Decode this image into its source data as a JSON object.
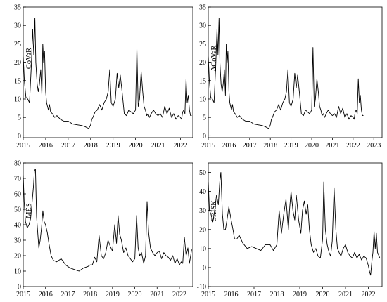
{
  "chart_data": [
    {
      "type": "line",
      "title": "",
      "xlabel": "",
      "ylabel": "CoVaR",
      "xlim": [
        2015.0,
        2022.55
      ],
      "ylim": [
        -0.5,
        35
      ],
      "xticks": [
        2015,
        2016,
        2017,
        2018,
        2019,
        2020,
        2021,
        2022
      ],
      "yticks": [
        0,
        5,
        10,
        15,
        20,
        25,
        30,
        35
      ],
      "grid": false,
      "line_color": "#000000",
      "x": [
        2015.0,
        2015.05,
        2015.12,
        2015.2,
        2015.28,
        2015.32,
        2015.36,
        2015.42,
        2015.47,
        2015.52,
        2015.56,
        2015.62,
        2015.67,
        2015.72,
        2015.78,
        2015.83,
        2015.87,
        2015.91,
        2015.95,
        2016.0,
        2016.04,
        2016.08,
        2016.12,
        2016.17,
        2016.22,
        2016.3,
        2016.4,
        2016.5,
        2016.65,
        2016.8,
        2017.0,
        2017.2,
        2017.4,
        2017.6,
        2017.75,
        2017.85,
        2017.92,
        2018.0,
        2018.05,
        2018.1,
        2018.2,
        2018.3,
        2018.4,
        2018.5,
        2018.6,
        2018.7,
        2018.78,
        2018.85,
        2018.92,
        2019.0,
        2019.1,
        2019.18,
        2019.25,
        2019.32,
        2019.4,
        2019.5,
        2019.6,
        2019.7,
        2019.8,
        2019.9,
        2020.0,
        2020.06,
        2020.12,
        2020.18,
        2020.25,
        2020.32,
        2020.38,
        2020.44,
        2020.5,
        2020.56,
        2020.62,
        2020.7,
        2020.8,
        2020.9,
        2021.0,
        2021.1,
        2021.2,
        2021.3,
        2021.4,
        2021.5,
        2021.6,
        2021.7,
        2021.8,
        2021.9,
        2022.0,
        2022.05,
        2022.1,
        2022.15,
        2022.2,
        2022.25,
        2022.3,
        2022.35,
        2022.4,
        2022.45,
        2022.5
      ],
      "values": [
        21.5,
        15.0,
        10.5,
        10.0,
        9.0,
        14.0,
        19.0,
        29.0,
        22.0,
        32.0,
        20.0,
        14.0,
        12.0,
        14.0,
        18.0,
        11.0,
        25.0,
        20.0,
        23.0,
        12.0,
        9.0,
        8.0,
        7.0,
        8.5,
        6.5,
        6.0,
        5.0,
        5.5,
        4.5,
        4.0,
        4.0,
        3.2,
        3.0,
        2.8,
        2.5,
        2.2,
        2.0,
        3.0,
        4.5,
        5.0,
        6.5,
        7.0,
        8.5,
        7.0,
        9.0,
        10.0,
        12.0,
        18.0,
        9.0,
        8.0,
        10.0,
        17.0,
        13.0,
        16.5,
        12.0,
        6.0,
        5.5,
        7.0,
        6.5,
        6.0,
        7.0,
        24.0,
        8.0,
        10.0,
        17.5,
        12.0,
        8.0,
        7.0,
        5.5,
        6.0,
        5.0,
        6.0,
        7.0,
        6.0,
        5.5,
        6.0,
        5.0,
        8.0,
        6.0,
        7.5,
        5.0,
        6.0,
        4.5,
        5.5,
        5.0,
        4.5,
        6.5,
        7.0,
        6.0,
        15.5,
        9.0,
        11.0,
        7.0,
        5.5,
        5.5
      ]
    },
    {
      "type": "line",
      "title": "",
      "xlabel": "",
      "ylabel": "ΔCoVaR",
      "xlim": [
        2015.0,
        2023.4
      ],
      "ylim": [
        -0.5,
        35
      ],
      "xticks": [
        2015,
        2016,
        2017,
        2018,
        2019,
        2020,
        2021,
        2022,
        2023
      ],
      "yticks": [
        0,
        5,
        10,
        15,
        20,
        25,
        30,
        35
      ],
      "grid": false,
      "line_color": "#000000",
      "x": [
        2015.0,
        2015.05,
        2015.12,
        2015.2,
        2015.28,
        2015.32,
        2015.36,
        2015.42,
        2015.47,
        2015.52,
        2015.56,
        2015.62,
        2015.67,
        2015.72,
        2015.78,
        2015.83,
        2015.87,
        2015.91,
        2015.95,
        2016.0,
        2016.04,
        2016.08,
        2016.12,
        2016.17,
        2016.22,
        2016.3,
        2016.4,
        2016.5,
        2016.65,
        2016.8,
        2017.0,
        2017.2,
        2017.4,
        2017.6,
        2017.75,
        2017.85,
        2017.92,
        2018.0,
        2018.05,
        2018.1,
        2018.2,
        2018.3,
        2018.4,
        2018.5,
        2018.6,
        2018.7,
        2018.78,
        2018.85,
        2018.92,
        2019.0,
        2019.1,
        2019.18,
        2019.25,
        2019.32,
        2019.4,
        2019.5,
        2019.6,
        2019.7,
        2019.8,
        2019.9,
        2020.0,
        2020.06,
        2020.12,
        2020.18,
        2020.25,
        2020.32,
        2020.38,
        2020.44,
        2020.5,
        2020.56,
        2020.62,
        2020.7,
        2020.8,
        2020.9,
        2021.0,
        2021.1,
        2021.2,
        2021.3,
        2021.4,
        2021.5,
        2021.6,
        2021.7,
        2021.8,
        2021.9,
        2022.0,
        2022.05,
        2022.1,
        2022.15,
        2022.2,
        2022.25,
        2022.3,
        2022.35,
        2022.4,
        2022.45,
        2022.5
      ],
      "values": [
        21.5,
        15.0,
        10.5,
        10.0,
        9.0,
        14.0,
        19.0,
        29.0,
        22.0,
        32.0,
        20.0,
        14.0,
        12.0,
        14.0,
        18.0,
        11.0,
        25.0,
        20.0,
        23.0,
        12.0,
        9.0,
        8.0,
        7.0,
        8.5,
        6.5,
        6.0,
        5.0,
        5.5,
        4.5,
        4.0,
        4.0,
        3.2,
        3.0,
        2.8,
        2.5,
        2.2,
        2.0,
        3.0,
        4.5,
        5.0,
        6.5,
        7.0,
        8.5,
        7.0,
        9.0,
        10.0,
        12.0,
        18.0,
        9.0,
        8.0,
        10.0,
        17.0,
        13.0,
        16.5,
        12.0,
        6.0,
        5.5,
        7.0,
        6.5,
        6.0,
        7.0,
        24.0,
        8.0,
        10.0,
        15.5,
        12.0,
        8.0,
        7.0,
        5.5,
        6.0,
        5.0,
        6.0,
        7.0,
        6.0,
        5.5,
        6.0,
        5.0,
        8.0,
        6.0,
        7.5,
        5.0,
        6.0,
        4.5,
        5.5,
        5.0,
        4.5,
        6.5,
        7.0,
        6.0,
        15.5,
        9.0,
        11.0,
        7.0,
        5.5,
        5.5
      ]
    },
    {
      "type": "line",
      "title": "",
      "xlabel": "",
      "ylabel": "MES",
      "xlim": [
        2015.0,
        2022.6
      ],
      "ylim": [
        0,
        80
      ],
      "xticks": [
        2015,
        2016,
        2017,
        2018,
        2019,
        2020,
        2021,
        2022
      ],
      "yticks": [
        0,
        10,
        20,
        30,
        40,
        50,
        60,
        70,
        80
      ],
      "grid": false,
      "line_color": "#000000",
      "x": [
        2015.0,
        2015.04,
        2015.1,
        2015.18,
        2015.26,
        2015.33,
        2015.4,
        2015.46,
        2015.5,
        2015.55,
        2015.6,
        2015.65,
        2015.7,
        2015.76,
        2015.82,
        2015.88,
        2015.94,
        2016.0,
        2016.08,
        2016.15,
        2016.25,
        2016.35,
        2016.5,
        2016.7,
        2016.9,
        2017.1,
        2017.3,
        2017.5,
        2017.7,
        2017.9,
        2018.0,
        2018.1,
        2018.2,
        2018.3,
        2018.4,
        2018.5,
        2018.6,
        2018.7,
        2018.8,
        2018.9,
        2019.0,
        2019.1,
        2019.18,
        2019.25,
        2019.32,
        2019.4,
        2019.5,
        2019.6,
        2019.7,
        2019.8,
        2019.9,
        2020.0,
        2020.08,
        2020.15,
        2020.22,
        2020.3,
        2020.4,
        2020.48,
        2020.55,
        2020.62,
        2020.7,
        2020.8,
        2020.9,
        2021.0,
        2021.1,
        2021.2,
        2021.3,
        2021.4,
        2021.5,
        2021.6,
        2021.7,
        2021.8,
        2021.9,
        2022.0,
        2022.08,
        2022.15,
        2022.22,
        2022.3,
        2022.38,
        2022.45,
        2022.55
      ],
      "values": [
        72.0,
        55.0,
        42.0,
        38.0,
        40.0,
        44.0,
        55.0,
        65.0,
        75.0,
        76.0,
        45.0,
        35.0,
        25.0,
        30.0,
        38.0,
        49.0,
        42.0,
        40.0,
        35.0,
        28.0,
        20.0,
        17.0,
        16.0,
        18.0,
        14.0,
        12.0,
        11.0,
        10.0,
        12.0,
        13.0,
        14.0,
        14.0,
        19.0,
        16.0,
        33.0,
        20.0,
        18.0,
        22.0,
        30.0,
        26.0,
        23.0,
        40.0,
        28.0,
        46.0,
        34.0,
        30.0,
        22.0,
        25.0,
        20.0,
        18.0,
        16.0,
        18.0,
        46.0,
        25.0,
        20.0,
        22.0,
        15.0,
        20.0,
        55.0,
        35.0,
        25.0,
        22.0,
        20.0,
        22.0,
        23.0,
        18.0,
        22.0,
        20.0,
        19.0,
        17.0,
        20.0,
        15.0,
        18.0,
        14.0,
        16.0,
        15.0,
        32.0,
        20.0,
        25.0,
        15.0,
        24.0
      ]
    },
    {
      "type": "line",
      "title": "",
      "xlabel": "",
      "ylabel": "SRISK",
      "xlim": [
        2015.0,
        2022.6
      ],
      "ylim": [
        -10,
        55
      ],
      "xticks": [
        2015,
        2016,
        2017,
        2018,
        2019,
        2020,
        2021,
        2022
      ],
      "yticks": [
        -10,
        0,
        10,
        20,
        30,
        40,
        50
      ],
      "grid": false,
      "line_color": "#000000",
      "x": [
        2015.0,
        2015.05,
        2015.12,
        2015.2,
        2015.28,
        2015.36,
        2015.44,
        2015.5,
        2015.55,
        2015.62,
        2015.68,
        2015.75,
        2015.82,
        2015.9,
        2016.0,
        2016.08,
        2016.15,
        2016.25,
        2016.35,
        2016.5,
        2016.7,
        2016.9,
        2017.1,
        2017.3,
        2017.5,
        2017.7,
        2017.85,
        2018.0,
        2018.1,
        2018.2,
        2018.3,
        2018.4,
        2018.5,
        2018.55,
        2018.62,
        2018.7,
        2018.78,
        2018.85,
        2018.95,
        2019.05,
        2019.12,
        2019.2,
        2019.28,
        2019.35,
        2019.42,
        2019.5,
        2019.6,
        2019.7,
        2019.8,
        2019.9,
        2020.0,
        2020.05,
        2020.12,
        2020.2,
        2020.28,
        2020.35,
        2020.42,
        2020.5,
        2020.58,
        2020.65,
        2020.72,
        2020.8,
        2020.9,
        2021.0,
        2021.1,
        2021.2,
        2021.3,
        2021.4,
        2021.5,
        2021.6,
        2021.7,
        2021.8,
        2021.9,
        2022.0,
        2022.05,
        2022.1,
        2022.15,
        2022.2,
        2022.25,
        2022.3,
        2022.35,
        2022.4,
        2022.5
      ],
      "values": [
        45.0,
        30.0,
        28.0,
        24.0,
        30.0,
        38.0,
        33.0,
        45.0,
        50.0,
        28.0,
        20.0,
        20.0,
        25.0,
        32.0,
        25.0,
        20.0,
        15.0,
        15.0,
        17.0,
        13.0,
        10.0,
        11.0,
        10.0,
        9.0,
        12.0,
        12.0,
        9.0,
        12.0,
        30.0,
        18.0,
        28.0,
        36.0,
        20.0,
        30.0,
        40.0,
        30.0,
        25.0,
        38.0,
        25.0,
        18.0,
        30.0,
        35.0,
        28.0,
        33.0,
        20.0,
        12.0,
        8.0,
        10.0,
        6.0,
        5.0,
        15.0,
        45.0,
        20.0,
        12.0,
        8.0,
        6.0,
        14.0,
        42.0,
        20.0,
        10.0,
        8.0,
        6.0,
        10.0,
        12.0,
        8.0,
        6.0,
        5.0,
        8.0,
        5.0,
        7.0,
        4.0,
        6.0,
        5.0,
        1.0,
        -2.0,
        -4.0,
        3.0,
        8.0,
        19.0,
        10.0,
        18.0,
        8.0,
        5.0
      ]
    }
  ]
}
